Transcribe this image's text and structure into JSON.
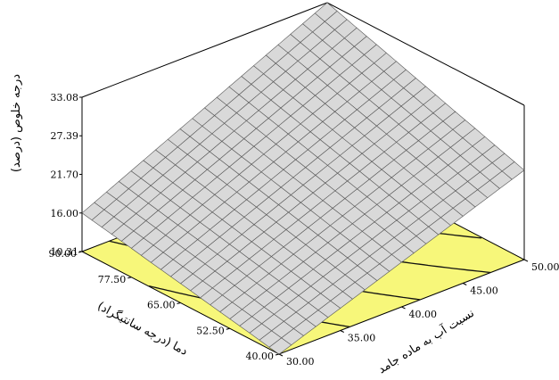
{
  "chart_data": {
    "type": "surface3d",
    "title": "",
    "zlabel": "درجه خلوص (درصد)",
    "xlabel": "دما (درجه سانتیگراد)",
    "ylabel": "نسبت آب به ماده جامد",
    "x_ticks": [
      "40.00",
      "52.50",
      "65.00",
      "77.50",
      "90.00"
    ],
    "y_ticks": [
      "30.00",
      "35.00",
      "40.00",
      "45.00",
      "50.00"
    ],
    "z_ticks": [
      "10.31",
      "16.00",
      "21.70",
      "27.39",
      "33.08"
    ],
    "xlim": [
      40,
      90
    ],
    "ylim": [
      30,
      50
    ],
    "zlim": [
      10.31,
      33.08
    ],
    "surface_corners": {
      "x40_y30": 10.3,
      "x90_y30": 16.0,
      "x40_y50": 23.5,
      "x90_y50": 33.08
    },
    "grid_divisions": 20,
    "colors": {
      "surface_fill": "#d9d9d9",
      "surface_line": "#555555",
      "contour_floor": "#f7f77a",
      "contour_line": "#111111",
      "frame": "#000000"
    }
  }
}
